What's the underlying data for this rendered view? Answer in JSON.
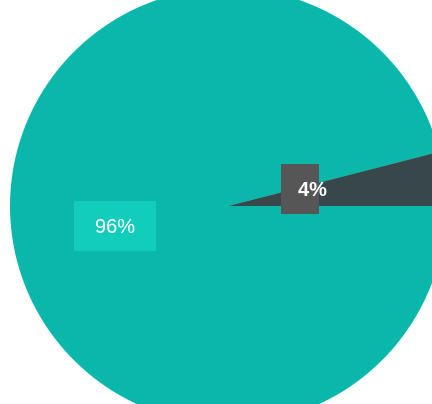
{
  "chart_data": {
    "type": "pie",
    "categories": [
      "",
      ""
    ],
    "values": [
      96,
      4
    ],
    "labels": [
      "96%",
      "4%"
    ],
    "colors": [
      "#09b8aa",
      "#37474a"
    ],
    "label_box_colors": [
      "#12cdb9",
      "#565656"
    ],
    "title": "",
    "legend": "none"
  }
}
